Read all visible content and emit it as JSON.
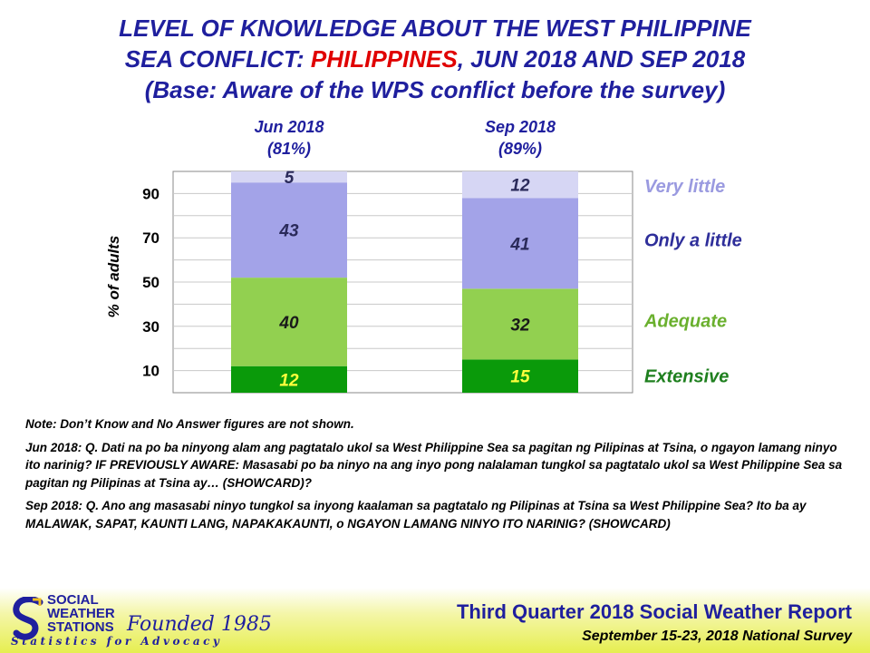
{
  "title": {
    "line1": "LEVEL OF KNOWLEDGE ABOUT THE WEST PHILIPPINE",
    "line2_pre": "SEA CONFLICT: ",
    "line2_hl": "PHILIPPINES",
    "line2_post": ", JUN 2018 AND SEP 2018",
    "line3": "(Base: Aware of the WPS conflict before the survey)"
  },
  "chart_data": {
    "type": "bar",
    "stacked": true,
    "categories": [
      "Jun 2018",
      "Sep 2018"
    ],
    "category_sublabels": [
      "(81%)",
      "(89%)"
    ],
    "ylabel": "% of adults",
    "ylim": [
      0,
      100
    ],
    "yticks": [
      10,
      30,
      50,
      70,
      90
    ],
    "grid": true,
    "legend_position": "right",
    "series": [
      {
        "name": "Extensive",
        "values": [
          12,
          15
        ],
        "color": "#0a9a0a",
        "label_color": "#ffff3c",
        "legend_color": "#1e7f1e"
      },
      {
        "name": "Adequate",
        "values": [
          40,
          32
        ],
        "color": "#92d050",
        "label_color": "#1a1a1a",
        "legend_color": "#6ab02e"
      },
      {
        "name": "Only a little",
        "values": [
          43,
          41
        ],
        "color": "#a3a3e8",
        "label_color": "#2a2a5a",
        "legend_color": "#2e2e9a"
      },
      {
        "name": "Very little",
        "values": [
          5,
          12
        ],
        "color": "#d6d6f4",
        "label_color": "#2a2a5a",
        "legend_color": "#9a9ae0"
      }
    ]
  },
  "notes": {
    "n1": "Note: Don’t Know and No Answer figures are not shown.",
    "n2": "Jun 2018: Q. Dati na po ba ninyong alam ang pagtatalo ukol sa West Philippine Sea sa pagitan ng Pilipinas at Tsina, o ngayon lamang ninyo ito narinig? IF PREVIOUSLY AWARE: Masasabi po ba ninyo na ang inyo pong nalalaman tungkol sa pagtatalo ukol sa West Philippine Sea sa pagitan ng Pilipinas at Tsina ay… (SHOWCARD)?",
    "n3": "Sep 2018: Q. Ano ang masasabi ninyo tungkol sa inyong kaalaman sa pagtatalo ng Pilipinas at Tsina sa West Philippine Sea? Ito ba ay MALAWAK, SAPAT, KAUNTI LANG, NAPAKAKAUNTI, o NGAYON LAMANG NINYO ITO NARINIG? (SHOWCARD)"
  },
  "footer": {
    "logo_line1": "SOCIAL",
    "logo_line2": "WEATHER",
    "logo_line3": "STATIONS",
    "founded": "Founded 1985",
    "tagline": "Statistics for Advocacy",
    "report": "Third Quarter 2018 Social Weather Report",
    "survey": "September 15-23, 2018 National Survey"
  }
}
